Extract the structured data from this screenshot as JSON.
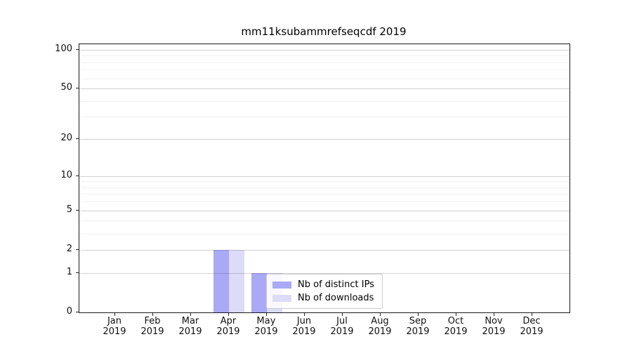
{
  "chart_data": {
    "type": "bar",
    "title": "mm11ksubammrefseqcdf 2019",
    "categories": [
      "Jan",
      "Feb",
      "Mar",
      "Apr",
      "May",
      "Jun",
      "Jul",
      "Aug",
      "Sep",
      "Oct",
      "Nov",
      "Dec"
    ],
    "category_year": "2019",
    "series": [
      {
        "name": "Nb of distinct IPs",
        "color": "#a9a9f5",
        "values": [
          0,
          0,
          0,
          2,
          1,
          0,
          0,
          0,
          0,
          0,
          0,
          0
        ]
      },
      {
        "name": "Nb of downloads",
        "color": "#dcdcf8",
        "values": [
          0,
          0,
          0,
          2,
          1,
          0,
          0,
          0,
          0,
          0,
          0,
          0
        ]
      }
    ],
    "y_axis": {
      "scale": "log10(1+y)",
      "ticks": [
        0,
        1,
        2,
        5,
        10,
        20,
        50,
        100
      ],
      "minor_ticks": [
        3,
        4,
        6,
        7,
        8,
        9,
        30,
        40,
        60,
        70,
        80,
        90
      ],
      "ylim": [
        0,
        110
      ]
    },
    "x_axis": {
      "tick_label_format": "month over year"
    },
    "legend": {
      "position": "inside-bottom-center",
      "entries": [
        "Nb of distinct IPs",
        "Nb of downloads"
      ]
    },
    "grid": true,
    "background_color": "#ffffff"
  }
}
